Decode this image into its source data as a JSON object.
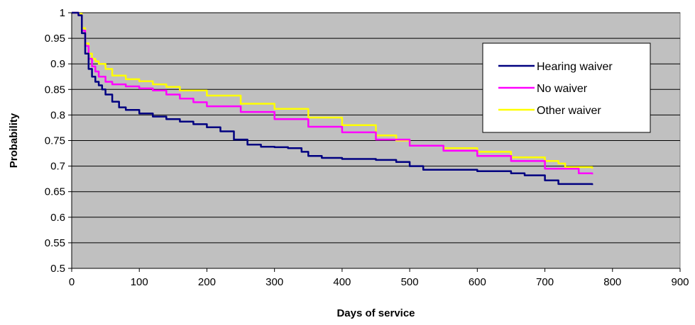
{
  "chart_data": {
    "type": "line",
    "title": "",
    "xlabel": "Days of service",
    "ylabel": "Probability",
    "xlim": [
      0,
      900
    ],
    "ylim": [
      0.5,
      1
    ],
    "xticks": [
      0,
      100,
      200,
      300,
      400,
      500,
      600,
      700,
      800,
      900
    ],
    "yticks": [
      0.5,
      0.55,
      0.6,
      0.65,
      0.7,
      0.75,
      0.8,
      0.85,
      0.9,
      0.95,
      1
    ],
    "xtick_labels": [
      "0",
      "100",
      "200",
      "300",
      "400",
      "500",
      "600",
      "700",
      "800",
      "900"
    ],
    "ytick_labels": [
      "0.5",
      "0.55",
      "0.6",
      "0.65",
      "0.7",
      "0.75",
      "0.8",
      "0.85",
      "0.9",
      "0.95",
      "1"
    ],
    "grid": "horizontal",
    "plot_background": "#c0c0c0",
    "legend_position": "top-right",
    "series": [
      {
        "name": "Hearing waiver",
        "color": "#000080",
        "x": [
          0,
          10,
          15,
          20,
          25,
          30,
          35,
          40,
          45,
          50,
          60,
          70,
          80,
          100,
          120,
          140,
          160,
          180,
          200,
          220,
          240,
          260,
          280,
          300,
          320,
          340,
          350,
          370,
          400,
          450,
          480,
          500,
          520,
          550,
          600,
          650,
          670,
          700,
          720,
          770
        ],
        "y": [
          1,
          0.995,
          0.96,
          0.92,
          0.89,
          0.875,
          0.865,
          0.858,
          0.85,
          0.84,
          0.826,
          0.815,
          0.81,
          0.803,
          0.797,
          0.792,
          0.787,
          0.782,
          0.776,
          0.768,
          0.752,
          0.742,
          0.738,
          0.737,
          0.735,
          0.728,
          0.72,
          0.716,
          0.714,
          0.712,
          0.708,
          0.7,
          0.693,
          0.693,
          0.69,
          0.686,
          0.682,
          0.672,
          0.665,
          0.663
        ]
      },
      {
        "name": "No waiver",
        "color": "#ff00ff",
        "x": [
          0,
          10,
          15,
          20,
          25,
          30,
          35,
          40,
          50,
          60,
          80,
          100,
          120,
          140,
          160,
          180,
          200,
          250,
          300,
          350,
          400,
          450,
          500,
          550,
          600,
          650,
          700,
          750,
          770
        ],
        "y": [
          1,
          0.995,
          0.965,
          0.935,
          0.91,
          0.895,
          0.885,
          0.875,
          0.865,
          0.86,
          0.856,
          0.852,
          0.848,
          0.84,
          0.832,
          0.825,
          0.817,
          0.806,
          0.792,
          0.777,
          0.766,
          0.752,
          0.74,
          0.73,
          0.72,
          0.71,
          0.695,
          0.686,
          0.684
        ]
      },
      {
        "name": "Other waiver",
        "color": "#ffff00",
        "x": [
          0,
          10,
          15,
          20,
          25,
          30,
          35,
          40,
          50,
          60,
          80,
          100,
          120,
          140,
          160,
          200,
          250,
          300,
          350,
          400,
          450,
          480,
          500,
          550,
          600,
          650,
          700,
          720,
          730,
          770
        ],
        "y": [
          1,
          0.998,
          0.97,
          0.94,
          0.92,
          0.91,
          0.905,
          0.9,
          0.89,
          0.877,
          0.87,
          0.866,
          0.86,
          0.855,
          0.848,
          0.838,
          0.822,
          0.812,
          0.795,
          0.78,
          0.76,
          0.75,
          0.74,
          0.735,
          0.728,
          0.717,
          0.71,
          0.705,
          0.698,
          0.695
        ]
      }
    ]
  }
}
